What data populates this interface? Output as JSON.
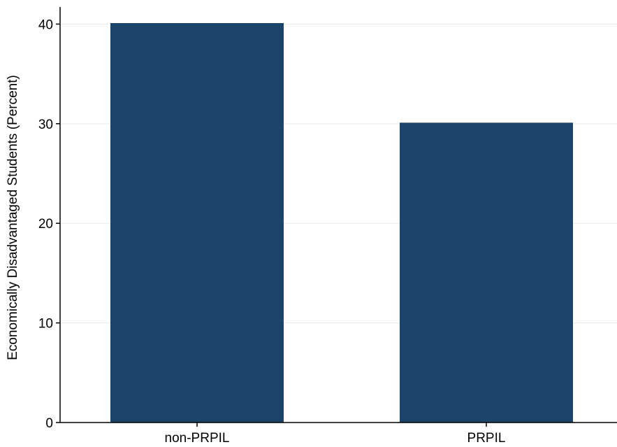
{
  "chart_data": {
    "type": "bar",
    "title": "",
    "xlabel": "",
    "ylabel": "Economically Disadvantaged Students (Percent)",
    "categories": [
      "non-PRPIL",
      "PRPIL"
    ],
    "values": [
      40.1,
      30.1
    ],
    "ylim": [
      0,
      40.1
    ],
    "yticks": [
      0,
      10,
      20,
      30,
      40
    ],
    "grid": true,
    "colors": {
      "bar": "#1a4469",
      "grid": "#eaeaea",
      "axis": "#000000"
    }
  }
}
